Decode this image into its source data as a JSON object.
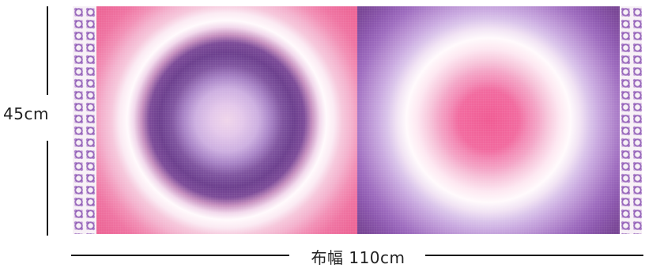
{
  "dimensions": {
    "height_label": "45cm",
    "width_label": "布幅 110cm"
  },
  "fabric": {
    "design": [
      {
        "name": "pink-purple-ring",
        "outer_color": "#ea5d8f",
        "ring_color": "#6c3f8e",
        "center_color": "#efd5ea"
      },
      {
        "name": "purple-pink-ring",
        "outer_color": "#6d3c88",
        "ring_color": "#fffafc",
        "center_color": "#f05b93"
      }
    ],
    "border_color": "#8a54b2"
  }
}
